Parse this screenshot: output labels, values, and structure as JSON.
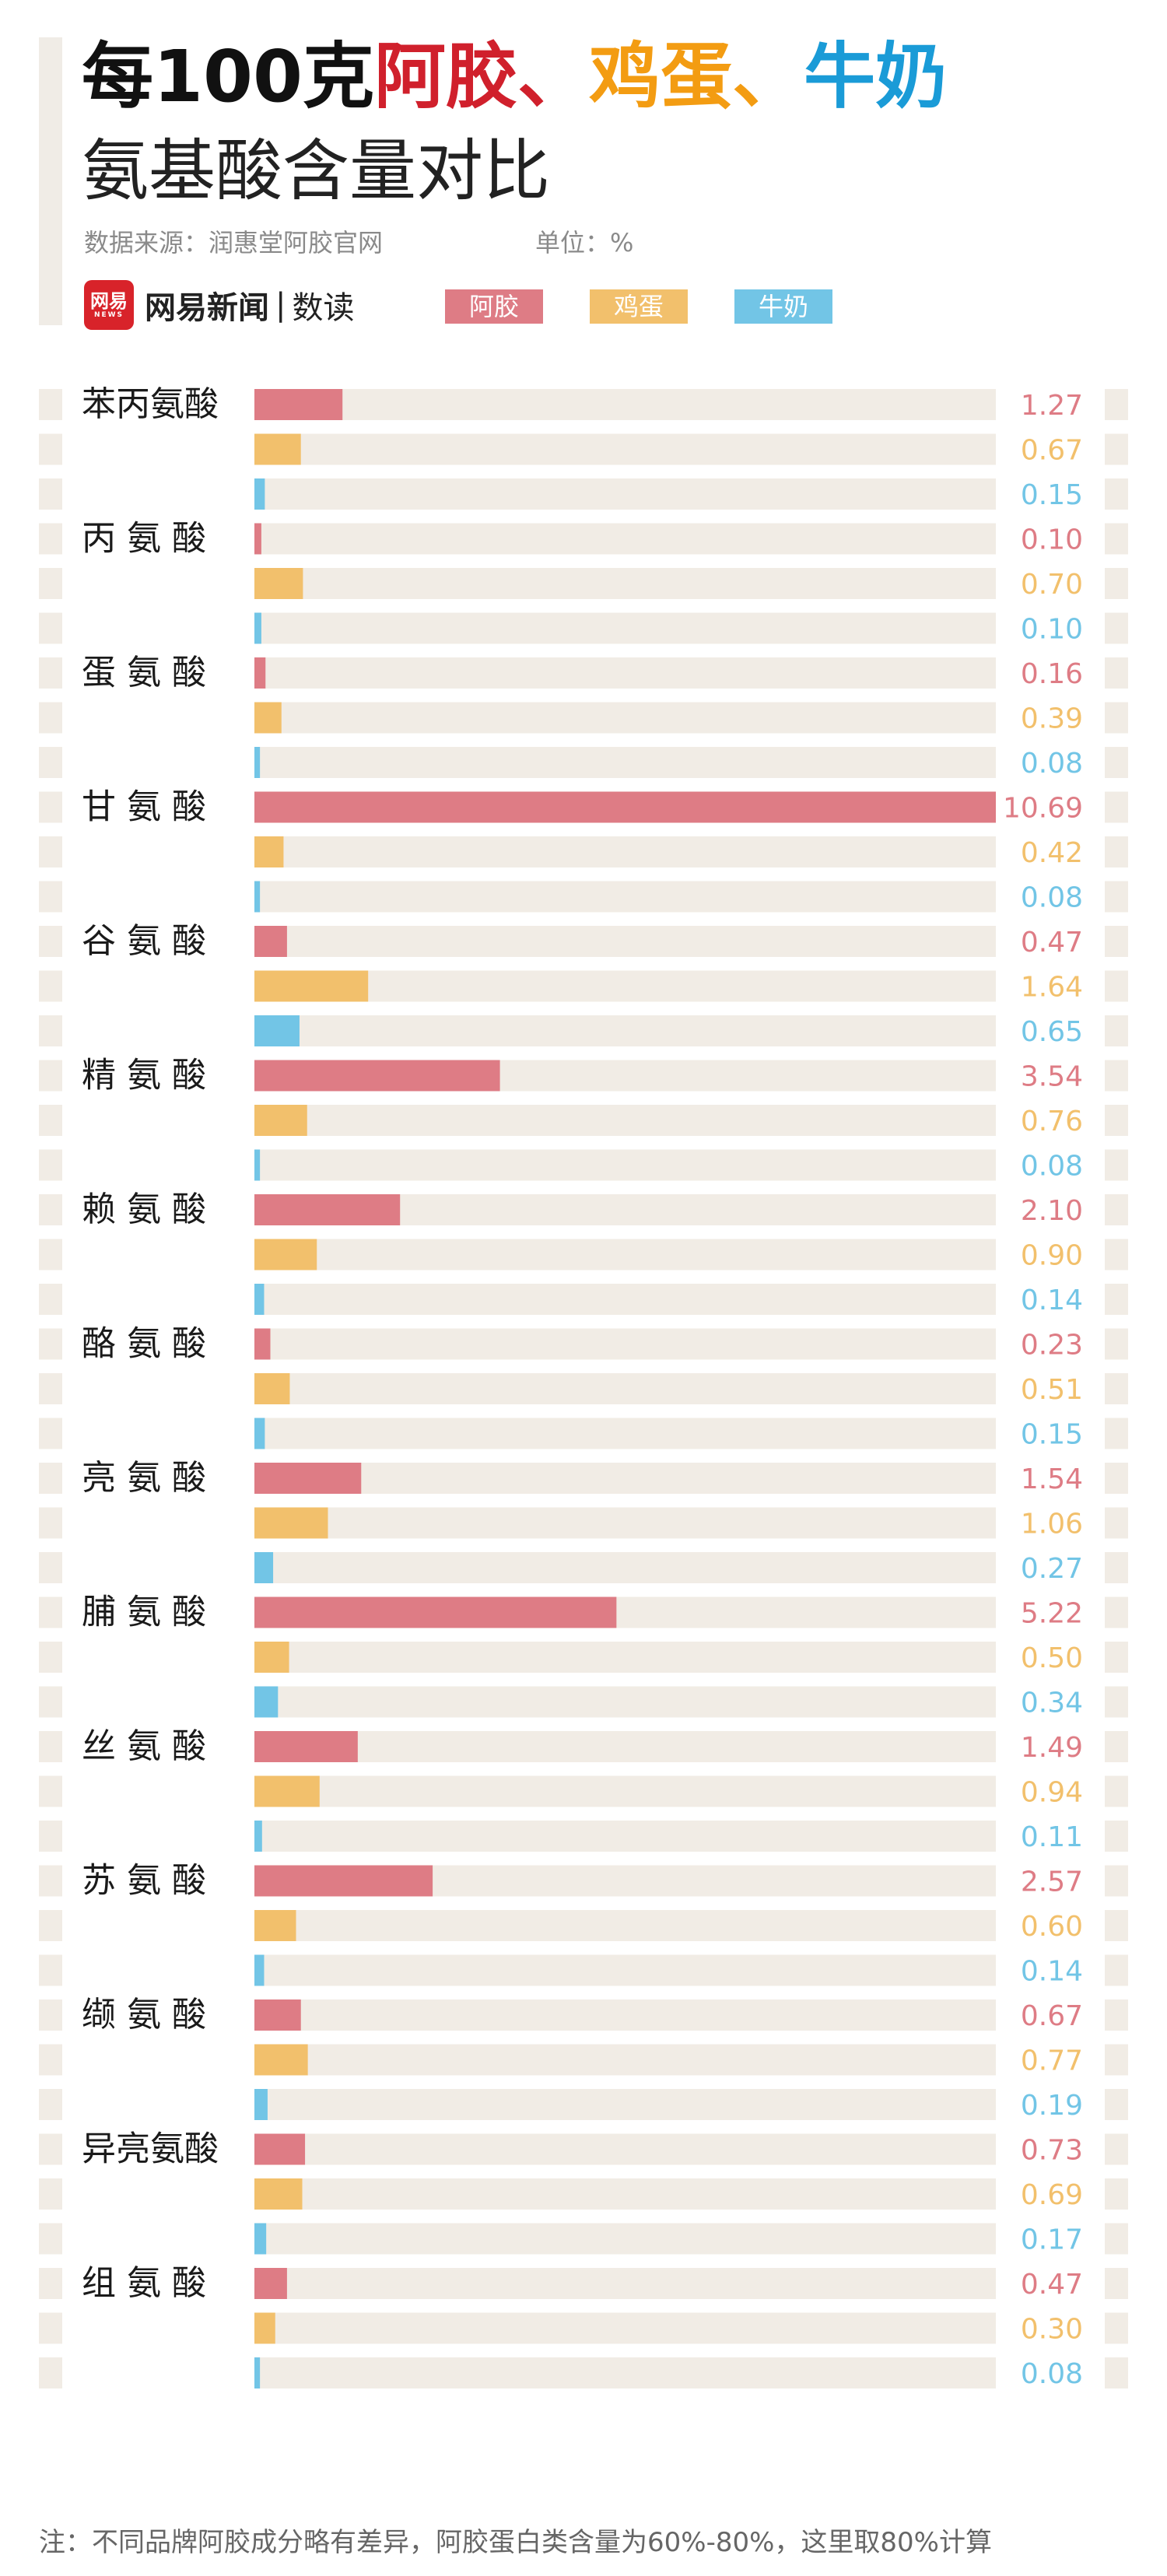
{
  "header": {
    "title_prefix": "每100克",
    "title_items": [
      "阿胶",
      "、",
      "鸡蛋",
      "、",
      "牛奶"
    ],
    "subtitle": "氨基酸含量对比",
    "source": "数据来源：润惠堂阿胶官网",
    "unit": "单位：%",
    "brand": {
      "logo_text": "网易",
      "logo_subtext": "NEWS",
      "name": "网易新闻",
      "separator": "|",
      "section": "数读"
    }
  },
  "colors": {
    "ejiao": "#de7c85",
    "egg": "#f2c06c",
    "milk": "#72c5e6",
    "title_ejiao": "#d0202c",
    "title_egg": "#f39c12",
    "title_milk": "#1a9bd7",
    "track": "#f1ece5"
  },
  "legend": [
    "阿胶",
    "鸡蛋",
    "牛奶"
  ],
  "chart_data": {
    "type": "bar",
    "orientation": "horizontal",
    "categories": [
      "苯丙氨酸",
      "丙氨酸",
      "蛋氨酸",
      "甘氨酸",
      "谷氨酸",
      "精氨酸",
      "赖氨酸",
      "酪氨酸",
      "亮氨酸",
      "脯氨酸",
      "丝氨酸",
      "苏氨酸",
      "缬氨酸",
      "异亮氨酸",
      "组氨酸"
    ],
    "series": [
      {
        "name": "阿胶",
        "values": [
          1.27,
          0.1,
          0.16,
          10.69,
          0.47,
          3.54,
          2.1,
          0.23,
          1.54,
          5.22,
          1.49,
          2.57,
          0.67,
          0.73,
          0.47
        ]
      },
      {
        "name": "鸡蛋",
        "values": [
          0.67,
          0.7,
          0.39,
          0.42,
          1.64,
          0.76,
          0.9,
          0.51,
          1.06,
          0.5,
          0.94,
          0.6,
          0.77,
          0.69,
          0.3
        ]
      },
      {
        "name": "牛奶",
        "values": [
          0.15,
          0.1,
          0.08,
          0.08,
          0.65,
          0.08,
          0.14,
          0.15,
          0.27,
          0.34,
          0.11,
          0.14,
          0.19,
          0.17,
          0.08
        ]
      }
    ],
    "value_labels": [
      [
        "1.27",
        "0.10",
        "0.16",
        "10.69",
        "0.47",
        "3.54",
        "2.10",
        "0.23",
        "1.54",
        "5.22",
        "1.49",
        "2.57",
        "0.67",
        "0.73",
        "0.47"
      ],
      [
        "0.67",
        "0.70",
        "0.39",
        "0.42",
        "1.64",
        "0.76",
        "0.90",
        "0.51",
        "1.06",
        "0.50",
        "0.94",
        "0.60",
        "0.77",
        "0.69",
        "0.30"
      ],
      [
        "0.15",
        "0.10",
        "0.08",
        "0.08",
        "0.65",
        "0.08",
        "0.14",
        "0.15",
        "0.27",
        "0.34",
        "0.11",
        "0.14",
        "0.19",
        "0.17",
        "0.08"
      ]
    ],
    "xlim": [
      0,
      10.69
    ],
    "grid": false
  },
  "footnote": "注：不同品牌阿胶成分略有差异，阿胶蛋白类含量为60%-80%，这里取80%计算"
}
